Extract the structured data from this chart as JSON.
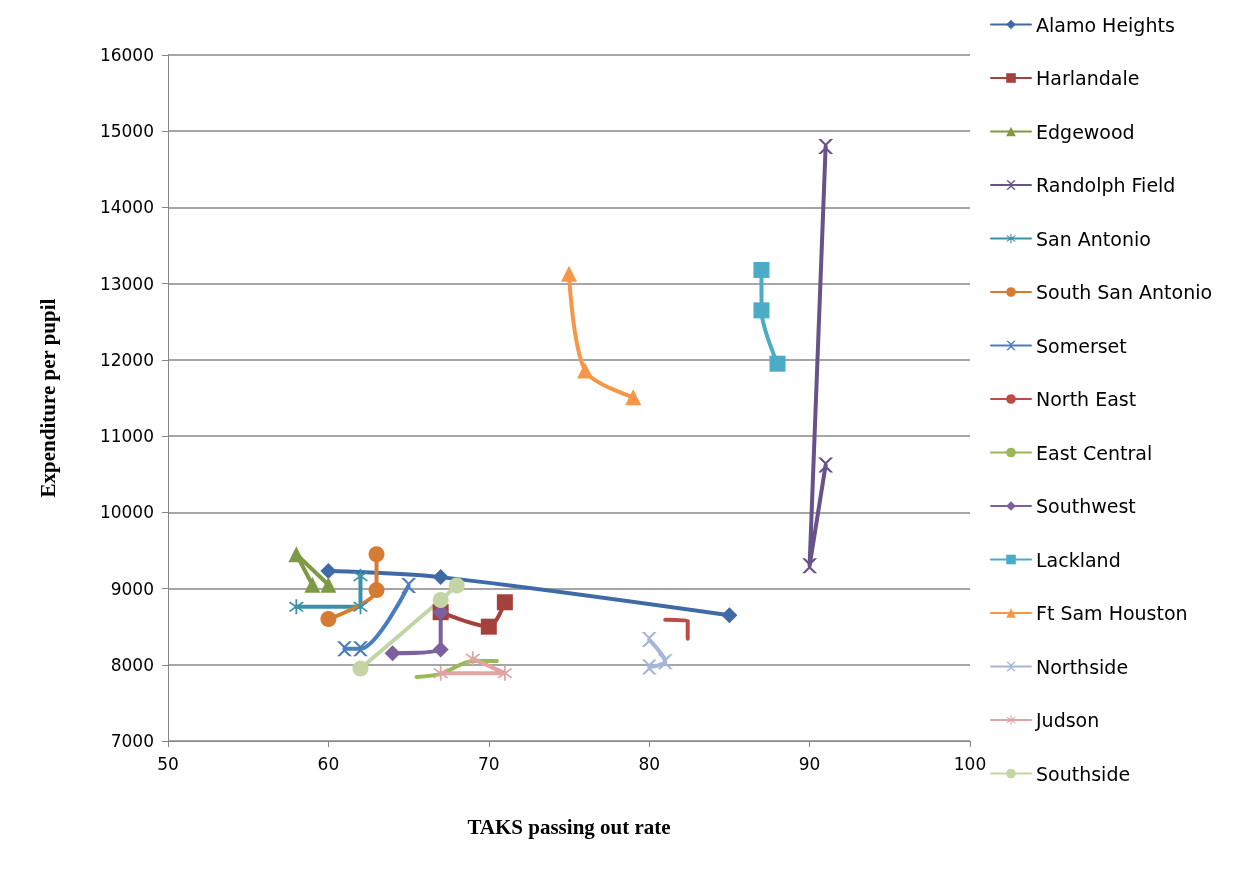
{
  "chart_data": {
    "type": "line",
    "xlabel": "TAKS passing out rate",
    "ylabel": "Expenditure per pupil",
    "xlim": [
      50,
      100
    ],
    "xticks": [
      50,
      60,
      70,
      80,
      90,
      100
    ],
    "ylim": [
      7000,
      16000
    ],
    "yticks": [
      7000,
      8000,
      9000,
      10000,
      11000,
      12000,
      13000,
      14000,
      15000,
      16000
    ],
    "grid": "y",
    "legend": "right",
    "line_style": "solid",
    "series": [
      {
        "name": "Alamo Heights",
        "color": "#3f6aa5",
        "marker": "diamond",
        "x": [
          60,
          67,
          85
        ],
        "values": [
          9230,
          9150,
          8650
        ]
      },
      {
        "name": "Harlandale",
        "color": "#a5403c",
        "marker": "square",
        "x": [
          67,
          70,
          71
        ],
        "values": [
          8690,
          8500,
          8820
        ]
      },
      {
        "name": "Edgewood",
        "color": "#7f9a44",
        "marker": "triangle",
        "x": [
          59,
          58,
          60
        ],
        "values": [
          9050,
          9450,
          9050
        ]
      },
      {
        "name": "Randolph Field",
        "color": "#67528a",
        "marker": "cross",
        "x": [
          91,
          90,
          91
        ],
        "values": [
          14800,
          9300,
          10620
        ]
      },
      {
        "name": "San Antonio",
        "color": "#3b92a8",
        "marker": "star",
        "x": [
          58,
          62,
          62
        ],
        "values": [
          8760,
          8760,
          9160
        ]
      },
      {
        "name": "South San Antonio",
        "color": "#d67b32",
        "marker": "circle",
        "x": [
          60,
          63,
          63
        ],
        "values": [
          8600,
          8980,
          9450
        ]
      },
      {
        "name": "Somerset",
        "color": "#4a7ebb",
        "marker": "cross",
        "x": [
          61,
          62,
          65
        ],
        "values": [
          8210,
          8210,
          9040
        ]
      },
      {
        "name": "North East",
        "color": "#be4b48",
        "marker": "none",
        "x": [
          81,
          82.4,
          82.4
        ],
        "values": [
          8590,
          8580,
          8340
        ]
      },
      {
        "name": "East Central",
        "color": "#98b954",
        "marker": "none",
        "x": [
          65.5,
          67,
          69,
          70.5
        ],
        "values": [
          7840,
          7880,
          8050,
          8050
        ]
      },
      {
        "name": "Southwest",
        "color": "#7d60a0",
        "marker": "diamond",
        "x": [
          64,
          67,
          67
        ],
        "values": [
          8150,
          8200,
          8690
        ]
      },
      {
        "name": "Lackland",
        "color": "#4bacc6",
        "marker": "square",
        "x": [
          87,
          87,
          88
        ],
        "values": [
          13180,
          12650,
          11950
        ]
      },
      {
        "name": "Ft Sam Houston",
        "color": "#f79646",
        "marker": "triangle",
        "x": [
          75,
          76,
          79
        ],
        "values": [
          13130,
          11860,
          11510
        ]
      },
      {
        "name": "Northside",
        "color": "#a5b6d8",
        "marker": "cross",
        "x": [
          80,
          81,
          80
        ],
        "values": [
          8330,
          8040,
          7970
        ]
      },
      {
        "name": "Judson",
        "color": "#dea5a4",
        "marker": "star",
        "x": [
          69,
          71,
          67
        ],
        "values": [
          8080,
          7890,
          7890
        ]
      },
      {
        "name": "Southside",
        "color": "#c3d5a4",
        "marker": "circle",
        "x": [
          62,
          67,
          68
        ],
        "values": [
          7950,
          8850,
          9040
        ]
      }
    ]
  }
}
